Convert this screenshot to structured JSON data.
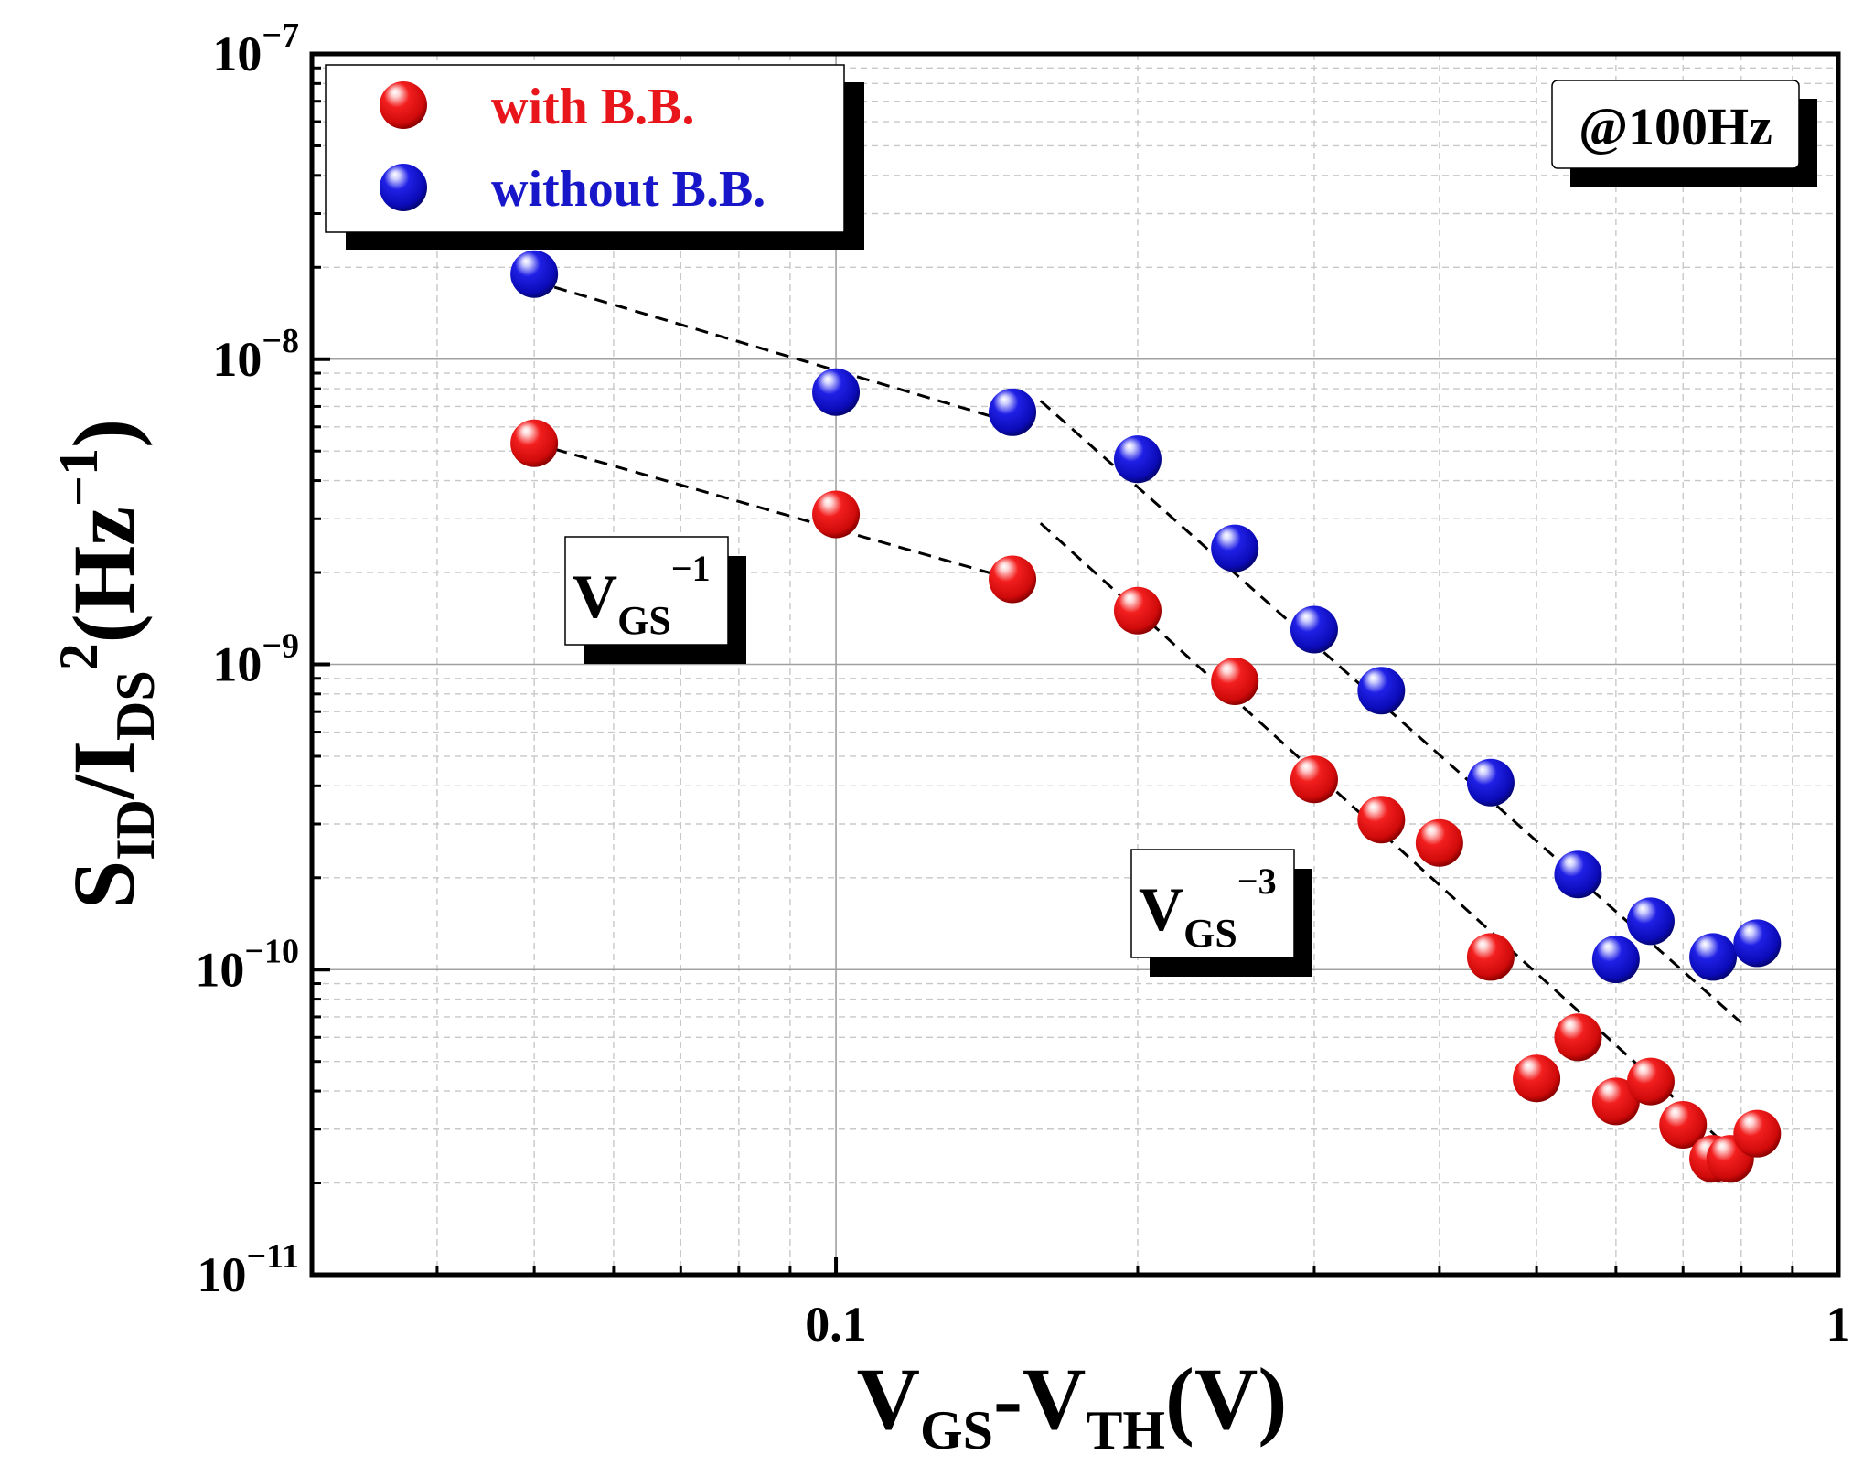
{
  "chart_data": {
    "type": "scatter",
    "x_scale": "log",
    "y_scale": "log",
    "xlim": [
      0.03,
      1
    ],
    "ylim": [
      1e-11,
      1e-07
    ],
    "x_ticks": [
      {
        "value": 0.1,
        "label": "0.1"
      },
      {
        "value": 1,
        "label": "1"
      }
    ],
    "y_ticks": [
      {
        "value": 1e-11,
        "base": "10",
        "exp": "−11"
      },
      {
        "value": 1e-10,
        "base": "10",
        "exp": "−10"
      },
      {
        "value": 1e-09,
        "base": "10",
        "exp": "−9"
      },
      {
        "value": 1e-08,
        "base": "10",
        "exp": "−8"
      },
      {
        "value": 1e-07,
        "base": "10",
        "exp": "−7"
      }
    ],
    "xlabel": {
      "main1": "V",
      "sub1": "GS",
      "dash": "-",
      "main2": "V",
      "sub2": "TH",
      "unit": "(V)"
    },
    "ylabel": {
      "s": "S",
      "s_sub": "ID",
      "slash": "/I",
      "i_sub": "DS",
      "i_sup": "2",
      "unit": "(Hz",
      "unit_sup": "−1",
      "close": ")"
    },
    "grid": true,
    "legend_position": "top-left",
    "annotation": "@100Hz",
    "series": [
      {
        "name": "with B.B.",
        "color": "#e8151b",
        "points": [
          [
            0.05,
            5.3e-09
          ],
          [
            0.1,
            3.1e-09
          ],
          [
            0.15,
            1.9e-09
          ],
          [
            0.2,
            1.5e-09
          ],
          [
            0.25,
            8.8e-10
          ],
          [
            0.3,
            4.2e-10
          ],
          [
            0.35,
            3.1e-10
          ],
          [
            0.4,
            2.6e-10
          ],
          [
            0.45,
            1.1e-10
          ],
          [
            0.5,
            4.4e-11
          ],
          [
            0.55,
            6e-11
          ],
          [
            0.6,
            3.7e-11
          ],
          [
            0.65,
            4.3e-11
          ],
          [
            0.7,
            3.1e-11
          ],
          [
            0.75,
            2.4e-11
          ],
          [
            0.78,
            2.4e-11
          ],
          [
            0.83,
            2.9e-11
          ]
        ]
      },
      {
        "name": "without B.B.",
        "color": "#1717c9",
        "points": [
          [
            0.05,
            1.9e-08
          ],
          [
            0.1,
            7.8e-09
          ],
          [
            0.15,
            6.7e-09
          ],
          [
            0.2,
            4.7e-09
          ],
          [
            0.25,
            2.4e-09
          ],
          [
            0.3,
            1.3e-09
          ],
          [
            0.35,
            8.2e-10
          ],
          [
            0.45,
            4.1e-10
          ],
          [
            0.55,
            2.05e-10
          ],
          [
            0.6,
            1.08e-10
          ],
          [
            0.65,
            1.44e-10
          ],
          [
            0.75,
            1.1e-10
          ],
          [
            0.83,
            1.22e-10
          ]
        ]
      }
    ],
    "fit_lines": [
      {
        "name": "upper-slope-1",
        "from": [
          0.05,
          1.8e-08
        ],
        "to": [
          0.15,
          6.2e-09
        ]
      },
      {
        "name": "upper-slope-3",
        "from": [
          0.16,
          7.3e-09
        ],
        "to": [
          0.8,
          6.7e-11
        ]
      },
      {
        "name": "lower-slope-1",
        "from": [
          0.05,
          5.3e-09
        ],
        "to": [
          0.15,
          1.9e-09
        ]
      },
      {
        "name": "lower-slope-3",
        "from": [
          0.16,
          2.9e-09
        ],
        "to": [
          0.8,
          2.4e-11
        ]
      }
    ],
    "slope_labels": [
      {
        "name": "slope-minus-1-label",
        "main": "V",
        "sub": "GS",
        "sup": "−1"
      },
      {
        "name": "slope-minus-3-label",
        "main": "V",
        "sub": "GS",
        "sup": "−3"
      }
    ]
  }
}
